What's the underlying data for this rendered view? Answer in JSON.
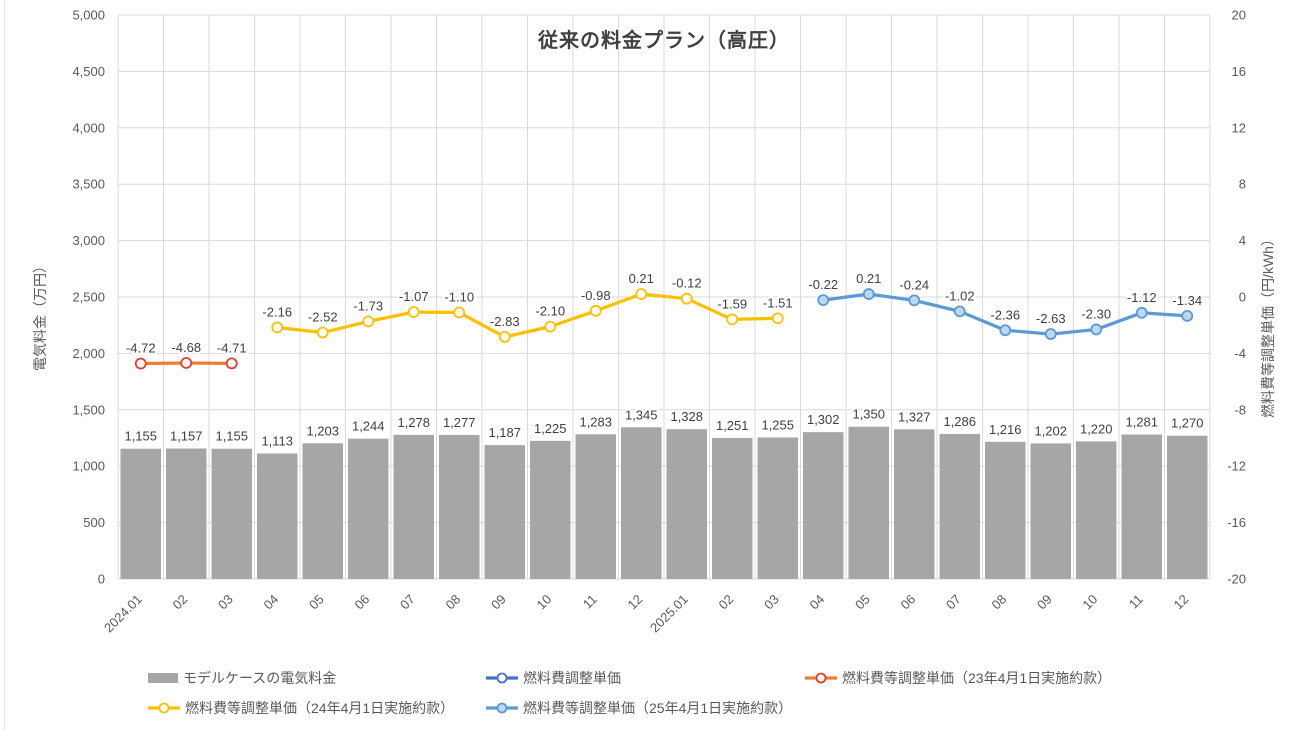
{
  "chart_data": {
    "type": "bar",
    "subtype": "bar-with-lines-combo",
    "title": "従来の料金プラン（高圧）",
    "categories": [
      "2024.01",
      "02",
      "03",
      "04",
      "05",
      "06",
      "07",
      "08",
      "09",
      "10",
      "11",
      "12",
      "2025.01",
      "02",
      "03",
      "04",
      "05",
      "06",
      "07",
      "08",
      "09",
      "10",
      "11",
      "12"
    ],
    "bar_series": {
      "name": "モデルケースの電気料金",
      "axis": "left",
      "color": "#A6A6A6",
      "values": [
        1155,
        1157,
        1155,
        1113,
        1203,
        1244,
        1278,
        1277,
        1187,
        1225,
        1283,
        1345,
        1328,
        1251,
        1255,
        1302,
        1350,
        1327,
        1286,
        1216,
        1202,
        1220,
        1281,
        1270
      ]
    },
    "line_series": [
      {
        "name": "燃料費調整単価",
        "axis": "right",
        "line_color": "#4472C4",
        "marker_stroke": "#4472C4",
        "marker_fill": "#FFFFFF",
        "legend_only": true,
        "values": [
          null,
          null,
          null,
          null,
          null,
          null,
          null,
          null,
          null,
          null,
          null,
          null,
          null,
          null,
          null,
          null,
          null,
          null,
          null,
          null,
          null,
          null,
          null,
          null
        ]
      },
      {
        "name": "燃料費等調整単価（23年4月1日実施約款）",
        "axis": "right",
        "line_color": "#ED7D31",
        "marker_stroke": "#E53E2E",
        "marker_fill": "#FFFFFF",
        "values": [
          -4.72,
          -4.68,
          -4.71,
          null,
          null,
          null,
          null,
          null,
          null,
          null,
          null,
          null,
          null,
          null,
          null,
          null,
          null,
          null,
          null,
          null,
          null,
          null,
          null,
          null
        ]
      },
      {
        "name": "燃料費等調整単価（24年4月1日実施約款）",
        "axis": "right",
        "line_color": "#FFC000",
        "marker_stroke": "#FFC000",
        "marker_fill": "#FFFFFF",
        "values": [
          null,
          null,
          null,
          -2.16,
          -2.52,
          -1.73,
          -1.07,
          -1.1,
          -2.83,
          -2.1,
          -0.98,
          0.21,
          -0.12,
          -1.59,
          -1.51,
          null,
          null,
          null,
          null,
          null,
          null,
          null,
          null,
          null
        ]
      },
      {
        "name": "燃料費等調整単価（25年4月1日実施約款）",
        "axis": "right",
        "line_color": "#5B9BD5",
        "marker_stroke": "#5B9BD5",
        "marker_fill": "#BDD7EE",
        "values": [
          null,
          null,
          null,
          null,
          null,
          null,
          null,
          null,
          null,
          null,
          null,
          null,
          null,
          null,
          null,
          -0.22,
          0.21,
          -0.24,
          -1.02,
          -2.36,
          -2.63,
          -2.3,
          -1.12,
          -1.34
        ]
      }
    ],
    "left_axis": {
      "label": "電気料金（万円）",
      "min": 0,
      "max": 5000,
      "step": 500,
      "ticks": [
        "5,000",
        "4,500",
        "4,000",
        "3,500",
        "3,000",
        "2,500",
        "2,000",
        "1,500",
        "1,000",
        "500",
        "0"
      ]
    },
    "right_axis": {
      "label": "燃料費等調整単価（円/kWh）",
      "min": -20,
      "max": 20,
      "step": 4,
      "ticks": [
        "20",
        "16",
        "12",
        "8",
        "4",
        "0",
        "-4",
        "-8",
        "-12",
        "-16",
        "-20"
      ]
    },
    "grid": true,
    "legend_position": "bottom",
    "colors": {
      "background": "#FFFFFF",
      "gridline": "#D9D9D9",
      "tick_text": "#595959",
      "data_label_text": "#404040",
      "title_text": "#404040"
    },
    "legend": {
      "rows": [
        [
          {
            "label": "モデルケースの電気料金",
            "swatch": "bar",
            "color": "#A6A6A6"
          },
          {
            "label": "燃料費調整単価",
            "swatch": "line",
            "line_color": "#4472C4",
            "marker_stroke": "#4472C4",
            "marker_fill": "#FFFFFF"
          },
          {
            "label": "燃料費等調整単価（23年4月1日実施約款）",
            "swatch": "line",
            "line_color": "#ED7D31",
            "marker_stroke": "#E53E2E",
            "marker_fill": "#FFFFFF"
          }
        ],
        [
          {
            "label": "燃料費等調整単価（24年4月1日実施約款）",
            "swatch": "line",
            "line_color": "#FFC000",
            "marker_stroke": "#FFC000",
            "marker_fill": "#FFFFFF"
          },
          {
            "label": "燃料費等調整単価（25年4月1日実施約款）",
            "swatch": "line",
            "line_color": "#5B9BD5",
            "marker_stroke": "#5B9BD5",
            "marker_fill": "#BDD7EE"
          }
        ]
      ]
    }
  }
}
